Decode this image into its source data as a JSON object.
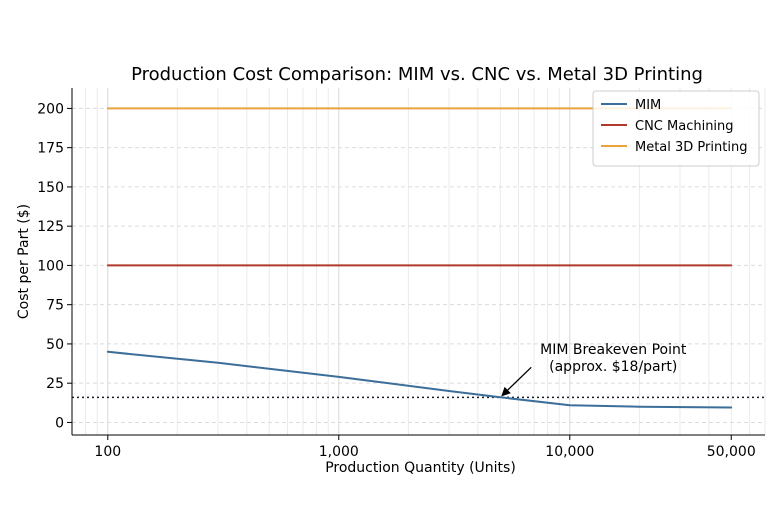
{
  "chart_data": {
    "type": "line",
    "title": "Production Cost Comparison: MIM vs. CNC vs. Metal 3D Printing",
    "xlabel": "Production Quantity (Units)",
    "ylabel": "Cost per Part ($)",
    "xscale": "log",
    "xlim": [
      70,
      70000
    ],
    "ylim": [
      -8,
      213
    ],
    "x_ticks": [
      100,
      1000,
      10000,
      50000
    ],
    "x_tick_labels": [
      "100",
      "1,000",
      "10,000",
      "50,000"
    ],
    "y_ticks": [
      0,
      25,
      50,
      75,
      100,
      125,
      150,
      175,
      200
    ],
    "y_tick_labels": [
      "0",
      "25",
      "50",
      "75",
      "100",
      "125",
      "150",
      "175",
      "200"
    ],
    "grid": true,
    "legend_position": "top-right",
    "series": [
      {
        "name": "MIM",
        "color": "#3b6e99",
        "x": [
          100,
          300,
          1000,
          3000,
          5000,
          10000,
          20000,
          50000
        ],
        "y": [
          45,
          38,
          29,
          20,
          16,
          11,
          10,
          9.5
        ]
      },
      {
        "name": "CNC Machining",
        "color": "#b03a2e",
        "x": [
          100,
          50000
        ],
        "y": [
          100,
          100
        ]
      },
      {
        "name": "Metal 3D Printing",
        "color": "#e8a33d",
        "x": [
          100,
          50000
        ],
        "y": [
          200,
          200
        ]
      }
    ],
    "reference_line": {
      "axis": "y",
      "value": 16,
      "style": "dotted",
      "color": "#1a1a2e"
    },
    "annotation": {
      "lines": [
        "MIM Breakeven Point",
        "(approx. $18/part)"
      ],
      "point_x": 5000,
      "point_y": 16
    }
  }
}
